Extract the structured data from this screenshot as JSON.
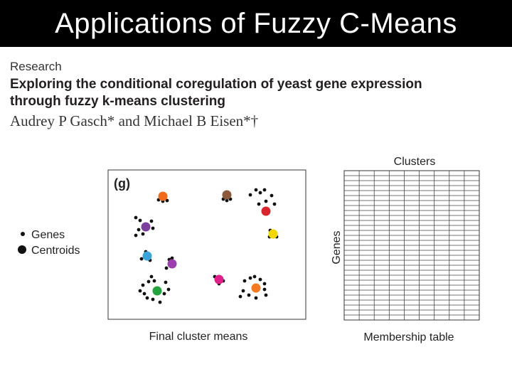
{
  "slide_title": "Applications of Fuzzy C-Means",
  "paper": {
    "section": "Research",
    "title_line1": "Exploring the conditional coregulation of yeast gene expression",
    "title_line2": "through fuzzy k-means clustering",
    "authors": "Audrey P Gasch* and Michael B Eisen*†"
  },
  "figure": {
    "panel_label": "(g)",
    "legend": {
      "genes": "Genes",
      "centroids": "Centroids"
    },
    "caption_left": "Final cluster means",
    "table_header": "Clusters",
    "table_row_label": "Genes",
    "caption_right": "Membership table",
    "table_columns": 9,
    "table_rows": 30,
    "colors": {
      "orange": "#ef6c1f",
      "brown": "#8b5a3c",
      "red": "#d7262e",
      "yellow": "#f2d600",
      "purple": "#7b3f9e",
      "light_blue": "#3aa4d8",
      "violet": "#9c3fae",
      "magenta": "#e0208a",
      "green": "#22a33b",
      "orange2": "#f47a20"
    }
  }
}
